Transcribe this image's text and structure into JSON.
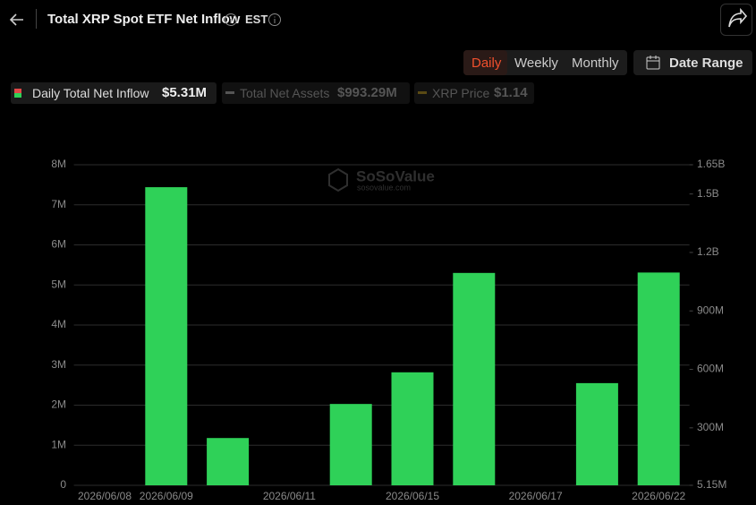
{
  "header": {
    "title": "Total XRP Spot ETF Net Inflow",
    "timezone": "EST"
  },
  "controls": {
    "periods": [
      "Daily",
      "Weekly",
      "Monthly"
    ],
    "date_range": "Date Range"
  },
  "legend": [
    {
      "label": "Daily Total Net Inflow",
      "value": "$5.31M"
    },
    {
      "label": "Total Net Assets",
      "value": "$993.29M"
    },
    {
      "label": "XRP Price",
      "value": "$1.14"
    }
  ],
  "watermark": {
    "brand": "SoSoValue",
    "site": "sosovalue.com"
  },
  "chart_data": {
    "type": "bar",
    "categories": [
      "2026/06/08",
      "2026/06/09",
      null,
      "2026/06/11",
      null,
      "2026/06/15",
      null,
      "2026/06/17",
      null,
      "2026/06/22"
    ],
    "values": [
      0,
      7440000,
      1180000,
      0,
      2030000,
      2820000,
      5300000,
      0,
      2550000,
      5310000
    ],
    "color": "#2fd158",
    "ylim": [
      0,
      8000000
    ],
    "yticks": [
      0,
      {
        "value": 1000000,
        "label": "1M"
      },
      {
        "value": 2000000,
        "label": "2M"
      },
      {
        "value": 3000000,
        "label": "3M"
      },
      {
        "value": 4000000,
        "label": "4M"
      },
      {
        "value": 5000000,
        "label": "5M"
      },
      {
        "value": 6000000,
        "label": "6M"
      },
      {
        "value": 7000000,
        "label": "7M"
      },
      {
        "value": 8000000,
        "label": "8M"
      }
    ],
    "y2lim": [
      5150000,
      1650000000
    ],
    "y2ticks": [
      {
        "value": 5150000,
        "label": "5.15M"
      },
      {
        "value": 300000000,
        "label": "300M"
      },
      {
        "value": 600000000,
        "label": "600M"
      },
      {
        "value": 900000000,
        "label": "900M"
      },
      {
        "value": 1200000000,
        "label": "1.2B"
      },
      {
        "value": 1500000000,
        "label": "1.5B"
      },
      {
        "value": 1650000000,
        "label": "1.65B"
      }
    ],
    "grid": true
  }
}
